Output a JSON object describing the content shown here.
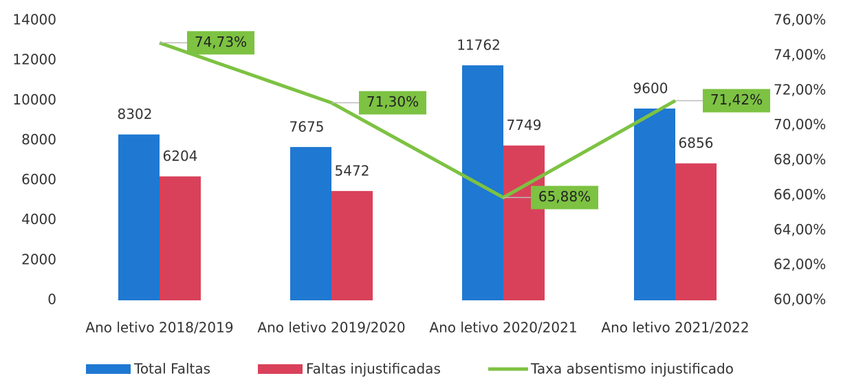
{
  "chart_data": {
    "type": "bar",
    "categories": [
      "Ano letivo 2018/2019",
      "Ano letivo 2019/2020",
      "Ano letivo 2020/2021",
      "Ano letivo 2021/2022"
    ],
    "series": [
      {
        "name": "Total Faltas",
        "color": "#1f78d1",
        "values": [
          8302,
          7675,
          11762,
          9600
        ]
      },
      {
        "name": "Faltas injustificadas",
        "color": "#d9415a",
        "values": [
          6204,
          5472,
          7749,
          6856
        ]
      },
      {
        "name": "Taxa absentismo injustificado",
        "color": "#7dc242",
        "axis": "y2",
        "values": [
          74.73,
          71.3,
          65.88,
          71.42
        ],
        "value_labels": [
          "74,73%",
          "71,30%",
          "65,88%",
          "71,42%"
        ]
      }
    ],
    "ylim": [
      0,
      14000
    ],
    "yticks": [
      0,
      2000,
      4000,
      6000,
      8000,
      10000,
      12000,
      14000
    ],
    "y2lim": [
      60,
      76
    ],
    "y2ticks": [
      {
        "value": 60,
        "label": "60,00%"
      },
      {
        "value": 62,
        "label": "62,00%"
      },
      {
        "value": 64,
        "label": "64,00%"
      },
      {
        "value": 66,
        "label": "66,00%"
      },
      {
        "value": 68,
        "label": "68,00%"
      },
      {
        "value": 70,
        "label": "70,00%"
      },
      {
        "value": 72,
        "label": "72,00%"
      },
      {
        "value": 74,
        "label": "74,00%"
      },
      {
        "value": 76,
        "label": "76,00%"
      }
    ],
    "grid": false,
    "legend": "bottom"
  }
}
